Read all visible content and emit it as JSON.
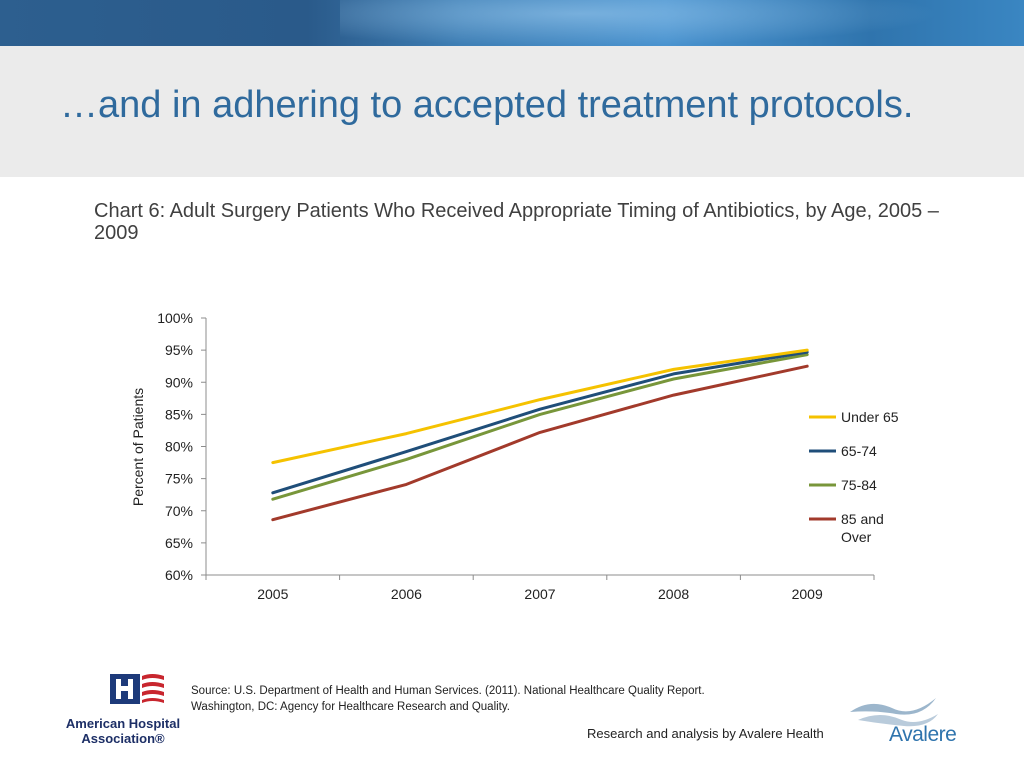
{
  "slide": {
    "title": "…and in adhering to accepted treatment protocols."
  },
  "chart_data": {
    "type": "line",
    "title": "Chart 6: Adult Surgery Patients Who Received Appropriate Timing of Antibiotics, by Age, 2005 – 2009",
    "xlabel": "",
    "ylabel": "Percent of Patients",
    "categories": [
      "2005",
      "2006",
      "2007",
      "2008",
      "2009"
    ],
    "ylim": [
      60,
      100
    ],
    "yticks": [
      60,
      65,
      70,
      75,
      80,
      85,
      90,
      95,
      100
    ],
    "ytick_labels": [
      "60%",
      "65%",
      "70%",
      "75%",
      "80%",
      "85%",
      "90%",
      "95%",
      "100%"
    ],
    "grid": false,
    "legend_position": "right",
    "series": [
      {
        "name": "Under 65",
        "color": "#f5c200",
        "values": [
          77.5,
          82.0,
          87.3,
          92.0,
          95.0
        ]
      },
      {
        "name": "65-74",
        "color": "#1f4e79",
        "values": [
          72.8,
          79.2,
          85.8,
          91.3,
          94.7
        ]
      },
      {
        "name": "75-84",
        "color": "#78963a",
        "values": [
          71.8,
          78.0,
          85.0,
          90.5,
          94.3
        ]
      },
      {
        "name": "85 and Over",
        "color": "#a23a2b",
        "values": [
          68.6,
          74.1,
          82.2,
          88.0,
          92.5
        ]
      }
    ]
  },
  "footer": {
    "source_line1": "Source: U.S. Department of Health and Human Services. (2011). National Healthcare Quality Report.",
    "source_line2": "Washington, DC: Agency for Healthcare Research and Quality.",
    "credit": "Research and analysis by Avalere Health",
    "aha_name_line1": "American Hospital",
    "aha_name_line2": "Association®",
    "avalere_name": "Avalere"
  },
  "colors": {
    "title_blue": "#2f6a9d",
    "banner_blue": "#2d5f8f",
    "band_gray": "#ebebeb",
    "axis_gray": "#8c8c8c"
  }
}
